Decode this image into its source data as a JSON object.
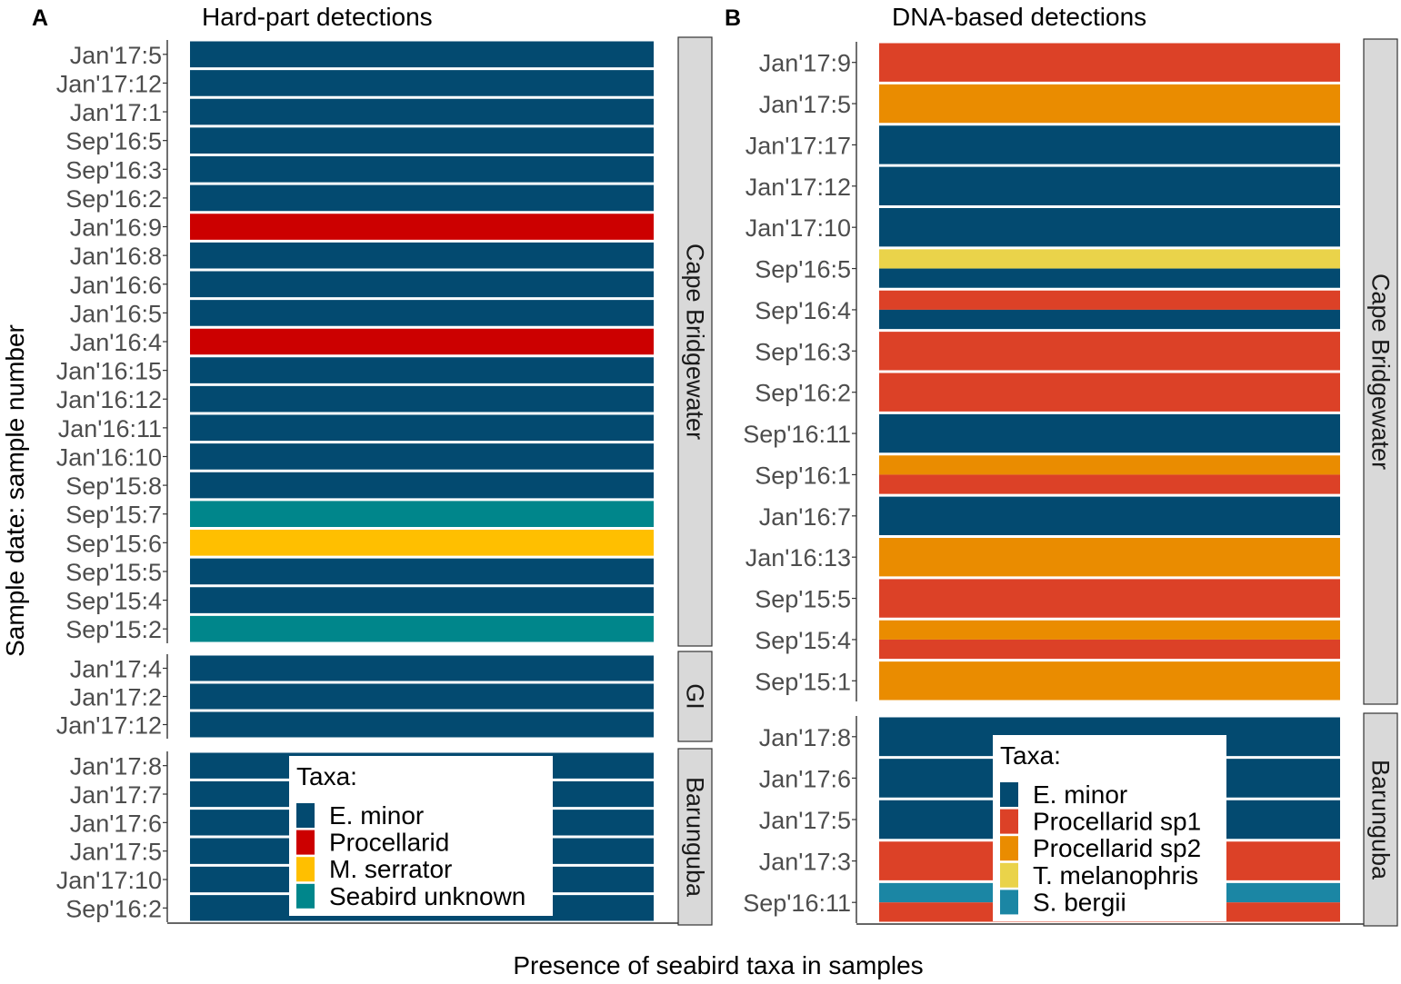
{
  "y_axis_label": "Sample date: sample number",
  "x_axis_label": "Presence of seabird taxa in samples",
  "colors": {
    "E. minor": "#034a70",
    "Procellarid": "#cc0000",
    "M. serrator": "#ffbf00",
    "Seabird unknown": "#00868b",
    "Procellarid sp1": "#dc4127",
    "Procellarid sp2": "#ea8c00",
    "T. melanophris": "#ead34a",
    "S. bergii": "#1b86a4"
  },
  "chart_data": [
    {
      "type": "bar",
      "orientation": "horizontal",
      "stacked": true,
      "panel_letter": "A",
      "title": "Hard-part detections",
      "xlabel": "Presence of seabird taxa in samples",
      "ylabel": "Sample date: sample number",
      "legend": {
        "title": "Taxa:",
        "entries": [
          "E. minor",
          "Procellarid",
          "M. serrator",
          "Seabird unknown"
        ],
        "placement": "bottom-center"
      },
      "facets": [
        {
          "name": "Cape Bridgewater",
          "samples": [
            {
              "label": "Jan'17:5",
              "taxa": [
                "E. minor"
              ]
            },
            {
              "label": "Jan'17:12",
              "taxa": [
                "E. minor"
              ]
            },
            {
              "label": "Jan'17:1",
              "taxa": [
                "E. minor"
              ]
            },
            {
              "label": "Sep'16:5",
              "taxa": [
                "E. minor"
              ]
            },
            {
              "label": "Sep'16:3",
              "taxa": [
                "E. minor"
              ]
            },
            {
              "label": "Sep'16:2",
              "taxa": [
                "E. minor"
              ]
            },
            {
              "label": "Jan'16:9",
              "taxa": [
                "Procellarid"
              ]
            },
            {
              "label": "Jan'16:8",
              "taxa": [
                "E. minor"
              ]
            },
            {
              "label": "Jan'16:6",
              "taxa": [
                "E. minor"
              ]
            },
            {
              "label": "Jan'16:5",
              "taxa": [
                "E. minor"
              ]
            },
            {
              "label": "Jan'16:4",
              "taxa": [
                "Procellarid"
              ]
            },
            {
              "label": "Jan'16:15",
              "taxa": [
                "E. minor"
              ]
            },
            {
              "label": "Jan'16:12",
              "taxa": [
                "E. minor"
              ]
            },
            {
              "label": "Jan'16:11",
              "taxa": [
                "E. minor"
              ]
            },
            {
              "label": "Jan'16:10",
              "taxa": [
                "E. minor"
              ]
            },
            {
              "label": "Sep'15:8",
              "taxa": [
                "E. minor"
              ]
            },
            {
              "label": "Sep'15:7",
              "taxa": [
                "Seabird unknown"
              ]
            },
            {
              "label": "Sep'15:6",
              "taxa": [
                "M. serrator"
              ]
            },
            {
              "label": "Sep'15:5",
              "taxa": [
                "E. minor"
              ]
            },
            {
              "label": "Sep'15:4",
              "taxa": [
                "E. minor"
              ]
            },
            {
              "label": "Sep'15:2",
              "taxa": [
                "Seabird unknown"
              ]
            }
          ]
        },
        {
          "name": "GI",
          "samples": [
            {
              "label": "Jan'17:4",
              "taxa": [
                "E. minor"
              ]
            },
            {
              "label": "Jan'17:2",
              "taxa": [
                "E. minor"
              ]
            },
            {
              "label": "Jan'17:12",
              "taxa": [
                "E. minor"
              ]
            }
          ]
        },
        {
          "name": "Barunguba",
          "samples": [
            {
              "label": "Jan'17:8",
              "taxa": [
                "E. minor"
              ]
            },
            {
              "label": "Jan'17:7",
              "taxa": [
                "E. minor"
              ]
            },
            {
              "label": "Jan'17:6",
              "taxa": [
                "E. minor"
              ]
            },
            {
              "label": "Jan'17:5",
              "taxa": [
                "E. minor"
              ]
            },
            {
              "label": "Jan'17:10",
              "taxa": [
                "E. minor"
              ]
            },
            {
              "label": "Sep'16:2",
              "taxa": [
                "E. minor"
              ]
            }
          ]
        }
      ]
    },
    {
      "type": "bar",
      "orientation": "horizontal",
      "stacked": true,
      "panel_letter": "B",
      "title": "DNA-based detections",
      "xlabel": "Presence of seabird taxa in samples",
      "ylabel": "Sample date: sample number",
      "legend": {
        "title": "Taxa:",
        "entries": [
          "E. minor",
          "Procellarid sp1",
          "Procellarid sp2",
          "T. melanophris",
          "S. bergii"
        ],
        "placement": "bottom-center"
      },
      "facets": [
        {
          "name": "Cape Bridgewater",
          "samples": [
            {
              "label": "Jan'17:9",
              "taxa": [
                "Procellarid sp1"
              ]
            },
            {
              "label": "Jan'17:5",
              "taxa": [
                "Procellarid sp2"
              ]
            },
            {
              "label": "Jan'17:17",
              "taxa": [
                "E. minor"
              ]
            },
            {
              "label": "Jan'17:12",
              "taxa": [
                "E. minor"
              ]
            },
            {
              "label": "Jan'17:10",
              "taxa": [
                "E. minor"
              ]
            },
            {
              "label": "Sep'16:5",
              "taxa": [
                "T. melanophris",
                "E. minor"
              ]
            },
            {
              "label": "Sep'16:4",
              "taxa": [
                "Procellarid sp1",
                "E. minor"
              ]
            },
            {
              "label": "Sep'16:3",
              "taxa": [
                "Procellarid sp1"
              ]
            },
            {
              "label": "Sep'16:2",
              "taxa": [
                "Procellarid sp1"
              ]
            },
            {
              "label": "Sep'16:11",
              "taxa": [
                "E. minor"
              ]
            },
            {
              "label": "Sep'16:1",
              "taxa": [
                "Procellarid sp2",
                "Procellarid sp1"
              ]
            },
            {
              "label": "Jan'16:7",
              "taxa": [
                "E. minor"
              ]
            },
            {
              "label": "Jan'16:13",
              "taxa": [
                "Procellarid sp2"
              ]
            },
            {
              "label": "Sep'15:5",
              "taxa": [
                "Procellarid sp1"
              ]
            },
            {
              "label": "Sep'15:4",
              "taxa": [
                "Procellarid sp2",
                "Procellarid sp1"
              ]
            },
            {
              "label": "Sep'15:1",
              "taxa": [
                "Procellarid sp2"
              ]
            }
          ]
        },
        {
          "name": "Barunguba",
          "samples": [
            {
              "label": "Jan'17:8",
              "taxa": [
                "E. minor"
              ]
            },
            {
              "label": "Jan'17:6",
              "taxa": [
                "E. minor"
              ]
            },
            {
              "label": "Jan'17:5",
              "taxa": [
                "E. minor"
              ]
            },
            {
              "label": "Jan'17:3",
              "taxa": [
                "Procellarid sp1"
              ]
            },
            {
              "label": "Sep'16:11",
              "taxa": [
                "S. bergii",
                "Procellarid sp1"
              ]
            }
          ]
        }
      ]
    }
  ]
}
